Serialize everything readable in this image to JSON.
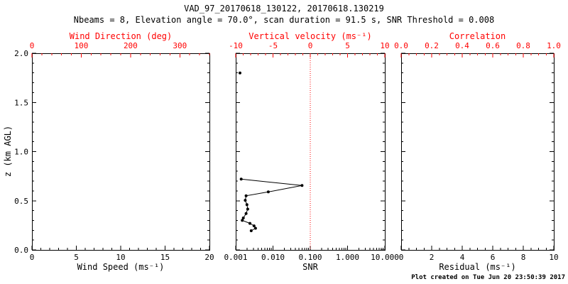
{
  "chart_data": {
    "type": "line",
    "title": "VAD_97_20170618_130122, 20170618.130219",
    "subtitle": "Nbeams = 8, Elevation angle = 70.0°, scan duration = 91.5 s, SNR Threshold = 0.008",
    "footer": "Plot created on Tue Jun 20 23:50:39 2017",
    "y_axis": {
      "label": "z (km AGL)",
      "lim": [
        0.0,
        2.0
      ],
      "ticks": [
        0.0,
        0.5,
        1.0,
        1.5,
        2.0
      ],
      "tick_labels": [
        "0.0",
        "0.5",
        "1.0",
        "1.5",
        "2.0"
      ]
    },
    "panels": [
      {
        "name": "wind",
        "bottom_axis": {
          "label": "Wind Speed (ms⁻¹)",
          "scale": "linear",
          "lim": [
            0,
            20
          ],
          "ticks": [
            0,
            5,
            10,
            15,
            20
          ],
          "tick_labels": [
            "0",
            "5",
            "10",
            "15",
            "20"
          ]
        },
        "top_axis": {
          "label": "Wind Direction (deg)",
          "scale": "linear",
          "lim": [
            0,
            360
          ],
          "ticks": [
            0,
            100,
            200,
            300
          ],
          "tick_labels": [
            "0",
            "100",
            "200",
            "300"
          ]
        },
        "series": []
      },
      {
        "name": "snr",
        "bottom_axis": {
          "label": "SNR",
          "scale": "log",
          "lim": [
            0.001,
            10
          ],
          "ticks": [
            0.001,
            0.01,
            0.1,
            1,
            10
          ],
          "tick_labels": [
            "0.001",
            "0.010",
            "0.100",
            "1.000",
            "10.000"
          ]
        },
        "top_axis": {
          "label": "Vertical velocity (ms⁻¹)",
          "scale": "linear",
          "lim": [
            -10,
            10
          ],
          "ticks": [
            -10,
            -5,
            0,
            5,
            10
          ],
          "tick_labels": [
            "-10",
            "-5",
            "0",
            "5",
            "10"
          ]
        },
        "ref_line": {
          "axis": "top",
          "value": 0,
          "color": "#ff0000",
          "style": "dotted"
        },
        "series": [
          {
            "name": "snr-point-upper",
            "marker": "circle",
            "color": "#000000",
            "points": [
              [
                0.0013,
                1.8
              ]
            ]
          },
          {
            "name": "snr-profile",
            "marker": "circle",
            "color": "#000000",
            "points": [
              [
                0.0014,
                0.72
              ],
              [
                0.06,
                0.655
              ],
              [
                0.0075,
                0.59
              ],
              [
                0.0019,
                0.55
              ],
              [
                0.0018,
                0.505
              ],
              [
                0.002,
                0.46
              ],
              [
                0.0021,
                0.415
              ],
              [
                0.0019,
                0.37
              ],
              [
                0.0016,
                0.325
              ],
              [
                0.0015,
                0.3
              ],
              [
                0.0024,
                0.27
              ],
              [
                0.0031,
                0.245
              ],
              [
                0.0034,
                0.22
              ],
              [
                0.0026,
                0.195
              ]
            ]
          }
        ]
      },
      {
        "name": "residual",
        "bottom_axis": {
          "label": "Residual (ms⁻¹)",
          "scale": "linear",
          "lim": [
            0,
            10
          ],
          "ticks": [
            0,
            2,
            4,
            6,
            8,
            10
          ],
          "tick_labels": [
            "0",
            "2",
            "4",
            "6",
            "8",
            "10"
          ]
        },
        "top_axis": {
          "label": "Correlation",
          "scale": "linear",
          "lim": [
            0,
            1
          ],
          "ticks": [
            0,
            0.2,
            0.4,
            0.6,
            0.8,
            1
          ],
          "tick_labels": [
            "0.0",
            "0.2",
            "0.4",
            "0.6",
            "0.8",
            "1.0"
          ]
        },
        "series": []
      }
    ],
    "colors": {
      "axis_accent": "#ff0000",
      "data": "#000000",
      "background": "#ffffff"
    }
  }
}
